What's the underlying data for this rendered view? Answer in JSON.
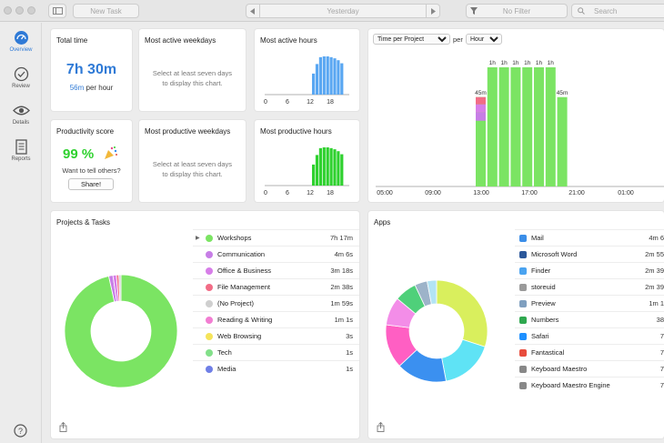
{
  "toolbar": {
    "new_task": "New Task",
    "date_label": "Yesterday",
    "filter_label": "No Filter",
    "search_placeholder": "Search"
  },
  "sidebar": {
    "items": [
      {
        "label": "Overview",
        "icon": "gauge-icon",
        "active": true
      },
      {
        "label": "Review",
        "icon": "checkmark-circle-icon",
        "active": false
      },
      {
        "label": "Details",
        "icon": "eye-icon",
        "active": false
      },
      {
        "label": "Reports",
        "icon": "document-icon",
        "active": false
      }
    ]
  },
  "total_time": {
    "title": "Total time",
    "value": "7h 30m",
    "per_hour_value": "56m",
    "per_hour_label": "per hour"
  },
  "productivity": {
    "title": "Productivity score",
    "value": "99 %",
    "tell": "Want to tell others?",
    "share": "Share!"
  },
  "active_weekdays": {
    "title": "Most active weekdays",
    "message_1": "Select at least seven days",
    "message_2": "to display this chart."
  },
  "productive_weekdays": {
    "title": "Most productive weekdays",
    "message_1": "Select at least seven days",
    "message_2": "to display this chart."
  },
  "active_hours": {
    "title": "Most active hours",
    "ticks": [
      "0",
      "6",
      "12",
      "18"
    ],
    "bars": [
      0.55,
      0.8,
      0.98,
      1,
      1,
      0.98,
      0.95,
      0.9,
      0.82
    ],
    "color": "#5aa7f2"
  },
  "productive_hours": {
    "title": "Most productive hours",
    "ticks": [
      "0",
      "6",
      "12",
      "18"
    ],
    "bars": [
      0.55,
      0.8,
      0.98,
      1,
      1,
      0.98,
      0.95,
      0.9,
      0.82
    ],
    "color": "#2fd12f"
  },
  "time_chart": {
    "dropdown": "Time per Project",
    "per_label": "per",
    "unit": "Hour",
    "x_ticks": [
      "05:00",
      "09:00",
      "13:00",
      "17:00",
      "21:00",
      "01:00"
    ],
    "labels": [
      "45m",
      "1h",
      "1h",
      "1h",
      "1h",
      "1h",
      "1h",
      "45m"
    ],
    "values": [
      45,
      60,
      60,
      60,
      60,
      60,
      60,
      45
    ]
  },
  "projects": {
    "title": "Projects & Tasks",
    "items": [
      {
        "name": "Workshops",
        "value": "7h 17m",
        "color": "#7be463",
        "expandable": true
      },
      {
        "name": "Communication",
        "value": "4m 6s",
        "color": "#c77ee6"
      },
      {
        "name": "Office & Business",
        "value": "3m 18s",
        "color": "#d77ee8"
      },
      {
        "name": "File Management",
        "value": "2m 38s",
        "color": "#f26c86"
      },
      {
        "name": "(No Project)",
        "value": "1m 59s",
        "color": "#cfcfcf"
      },
      {
        "name": "Reading & Writing",
        "value": "1m 1s",
        "color": "#f27ed2"
      },
      {
        "name": "Web Browsing",
        "value": "3s",
        "color": "#f5e45a"
      },
      {
        "name": "Tech",
        "value": "1s",
        "color": "#83e08a"
      },
      {
        "name": "Media",
        "value": "1s",
        "color": "#6f7fe6"
      }
    ]
  },
  "apps": {
    "title": "Apps",
    "items": [
      {
        "name": "Mail",
        "value": "4m 6",
        "color": "#3b8ee8",
        "icon": "mail-icon"
      },
      {
        "name": "Microsoft Word",
        "value": "2m 55",
        "color": "#2b579a",
        "icon": "word-icon"
      },
      {
        "name": "Finder",
        "value": "2m 39",
        "color": "#4aa3f0",
        "icon": "finder-icon"
      },
      {
        "name": "storeuid",
        "value": "2m 39",
        "color": "#9a9a9a",
        "icon": "storeuid-icon"
      },
      {
        "name": "Preview",
        "value": "1m 1",
        "color": "#7f9fbf",
        "icon": "preview-icon"
      },
      {
        "name": "Numbers",
        "value": "38",
        "color": "#2fa84f",
        "icon": "numbers-icon"
      },
      {
        "name": "Safari",
        "value": "7",
        "color": "#1e90ff",
        "icon": "safari-icon"
      },
      {
        "name": "Fantastical",
        "value": "7",
        "color": "#e84c3d",
        "icon": "fantastical-icon"
      },
      {
        "name": "Keyboard Maestro",
        "value": "7",
        "color": "#888888",
        "icon": "keyboard-maestro-icon"
      },
      {
        "name": "Keyboard Maestro Engine",
        "value": "7",
        "color": "#888888",
        "icon": "keyboard-maestro-engine-icon"
      }
    ],
    "donut": [
      {
        "share": 0.3,
        "color": "#d9ef5d"
      },
      {
        "share": 0.17,
        "color": "#5fe3f5"
      },
      {
        "share": 0.16,
        "color": "#3b90f0"
      },
      {
        "share": 0.14,
        "color": "#ff5fc3"
      },
      {
        "share": 0.09,
        "color": "#f38de8"
      },
      {
        "share": 0.07,
        "color": "#4fd07a"
      },
      {
        "share": 0.04,
        "color": "#9db3c9"
      },
      {
        "share": 0.03,
        "color": "#b3e4f4"
      }
    ]
  },
  "projects_donut": [
    {
      "share": 0.965,
      "color": "#7be463"
    },
    {
      "share": 0.012,
      "color": "#c77ee6"
    },
    {
      "share": 0.01,
      "color": "#d77ee8"
    },
    {
      "share": 0.007,
      "color": "#f26c86"
    },
    {
      "share": 0.006,
      "color": "#cfcfcf"
    }
  ]
}
